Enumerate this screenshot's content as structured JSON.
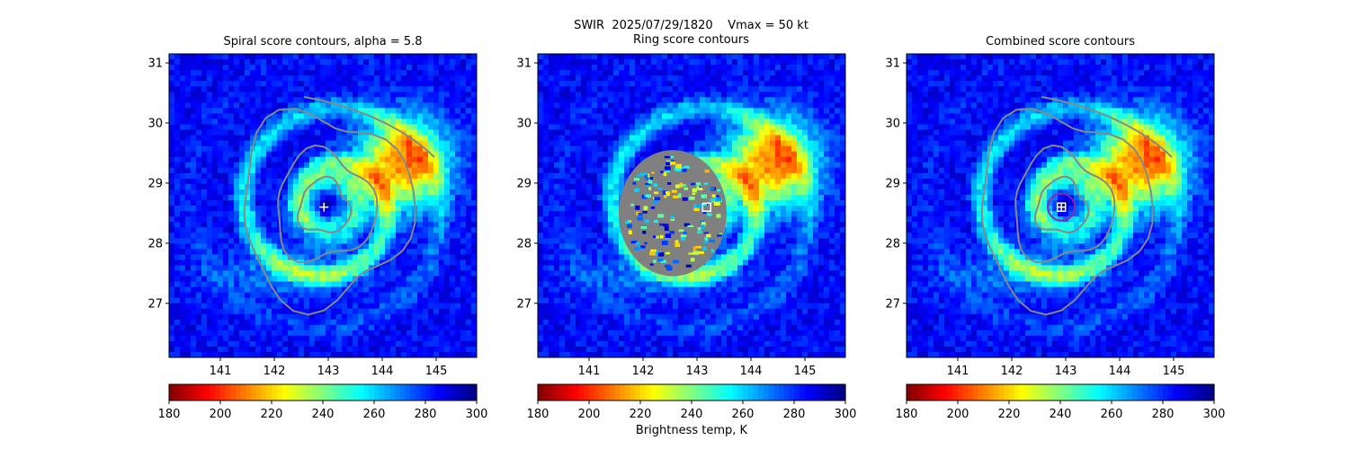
{
  "figure": {
    "title_line1": "SWIR  2025/07/29/1820    Vmax = 50 kt",
    "title_line2": "Ring score contours",
    "colorbar_label": "Brightness temp, K"
  },
  "chart_data": [
    {
      "type": "heatmap",
      "title": "Spiral score contours, alpha =  5.8",
      "xlim": [
        140.05,
        145.75
      ],
      "ylim": [
        26.1,
        31.15
      ],
      "xticks": [
        141,
        142,
        143,
        144,
        145
      ],
      "yticks": [
        27,
        28,
        29,
        30,
        31
      ],
      "center_marker": {
        "shape": "plus",
        "x": 142.92,
        "y": 28.6
      },
      "colorbar": {
        "range": [
          180,
          300
        ],
        "ticks": [
          180,
          200,
          220,
          240,
          260,
          280,
          300
        ],
        "colormap": "jet_r"
      },
      "colors": {
        "contour": "#888888",
        "marker": "#ffffff"
      }
    },
    {
      "type": "heatmap",
      "title": "Ring score contours",
      "xlim": [
        140.05,
        145.75
      ],
      "ylim": [
        26.1,
        31.15
      ],
      "xticks": [
        141,
        142,
        143,
        144,
        145
      ],
      "yticks": [
        27,
        28,
        29,
        30,
        31
      ],
      "center_marker": {
        "shape": "square",
        "x": 143.18,
        "y": 28.6
      },
      "masked_region": {
        "shape": "ellipse",
        "center": [
          142.55,
          28.5
        ],
        "half_width_deg": 1.0,
        "half_height_deg": 1.05,
        "color": "#808080"
      },
      "colorbar": {
        "range": [
          180,
          300
        ],
        "ticks": [
          180,
          200,
          220,
          240,
          260,
          280,
          300
        ],
        "colormap": "jet_r",
        "label": "Brightness temp, K"
      }
    },
    {
      "type": "heatmap",
      "title": "Combined score contours",
      "xlim": [
        140.05,
        145.75
      ],
      "ylim": [
        26.1,
        31.15
      ],
      "xticks": [
        141,
        142,
        143,
        144,
        145
      ],
      "yticks": [
        27,
        28,
        29,
        30,
        31
      ],
      "center_marker": {
        "shape": "square-plus",
        "x": 142.92,
        "y": 28.6
      },
      "circle": {
        "x": 142.92,
        "y": 28.6,
        "radius_deg": 0.25,
        "color": "#8e24aa"
      },
      "colorbar": {
        "range": [
          180,
          300
        ],
        "ticks": [
          180,
          200,
          220,
          240,
          260,
          280,
          300
        ],
        "colormap": "jet_r"
      },
      "colors": {
        "contour": "#888888",
        "marker": "#ffffff"
      }
    }
  ]
}
